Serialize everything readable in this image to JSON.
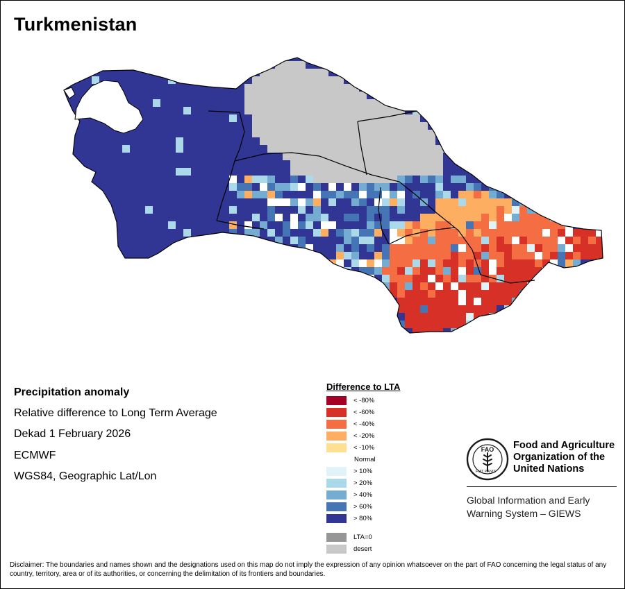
{
  "map": {
    "title": "Turkmenistan",
    "info": {
      "variable": "Precipitation anomaly",
      "description": "Relative difference to Long Term Average",
      "period": "Dekad 1 February 2026",
      "model": "ECMWF",
      "projection": "WGS84, Geographic Lat/Lon"
    },
    "disclaimer": "Disclaimer: The boundaries and names shown and the designations used on this map do not imply the expression of any opinion whatsoever on the part of FAO concerning the legal status of any country, territory, area or of its authorities, or concerning the delimitation of its frontiers and boundaries."
  },
  "legend": {
    "title": "Difference to LTA",
    "dry": [
      {
        "label": "< -80%",
        "color": "#A50026"
      },
      {
        "label": "< -60%",
        "color": "#D73027"
      },
      {
        "label": "< -40%",
        "color": "#F46D43"
      },
      {
        "label": "< -20%",
        "color": "#FDAE61"
      },
      {
        "label": "< -10%",
        "color": "#FEE090"
      }
    ],
    "normal": "Normal",
    "wet": [
      {
        "label": "> 10%",
        "color": "#E0F3F8"
      },
      {
        "label": "> 20%",
        "color": "#ABD9E9"
      },
      {
        "label": "> 40%",
        "color": "#74ADD1"
      },
      {
        "label": "> 60%",
        "color": "#4575B4"
      },
      {
        "label": "> 80%",
        "color": "#313695"
      }
    ],
    "other": [
      {
        "label": "LTA=0",
        "color": "#969696"
      },
      {
        "label": "desert",
        "color": "#C8C8C8"
      }
    ]
  },
  "organization": {
    "name_line1": "Food and Agriculture",
    "name_line2": "Organization of the",
    "name_line3": "United Nations",
    "logo_text": "FAO",
    "logo_motto": "FIAT PANIS",
    "system_line1": "Global Information and Early",
    "system_line2": "Warning System – GIEWS"
  }
}
